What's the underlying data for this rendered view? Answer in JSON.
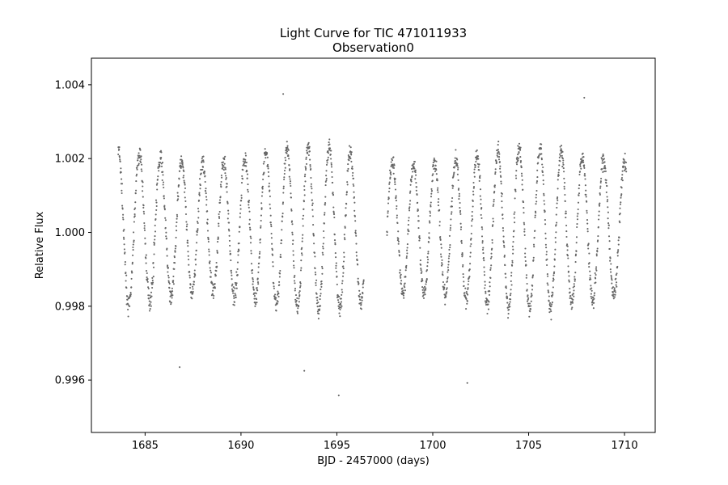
{
  "chart_data": {
    "type": "scatter",
    "title": "Light Curve for TIC 471011933",
    "subtitle": "Observation0",
    "xlabel": "BJD - 2457000 (days)",
    "ylabel": "Relative Flux",
    "xlim": [
      1682.2,
      1711.6
    ],
    "ylim": [
      0.99458,
      1.00472
    ],
    "xticks": [
      1685,
      1690,
      1695,
      1700,
      1705,
      1710
    ],
    "yticks": [
      0.996,
      0.998,
      1.0,
      1.002,
      1.004
    ],
    "xtick_labels": [
      "1685",
      "1690",
      "1695",
      "1700",
      "1705",
      "1710"
    ],
    "ytick_labels": [
      "0.996",
      "0.998",
      "1.000",
      "1.002",
      "1.004"
    ],
    "grid": false,
    "marker_color": "#666666",
    "series": [
      {
        "gaps": [
          [
            1696.4,
            1697.6
          ]
        ],
        "x_range": [
          1683.6,
          1710.1
        ],
        "baseline": 1.0,
        "amplitude": 0.0022,
        "period_days": 1.1,
        "outliers": [
          {
            "x": 1692.2,
            "y": 1.00375
          },
          {
            "x": 1695.1,
            "y": 0.99558
          },
          {
            "x": 1701.8,
            "y": 0.99592
          },
          {
            "x": 1693.3,
            "y": 0.99625
          },
          {
            "x": 1686.8,
            "y": 0.99635
          },
          {
            "x": 1707.9,
            "y": 1.00365
          }
        ]
      }
    ]
  }
}
